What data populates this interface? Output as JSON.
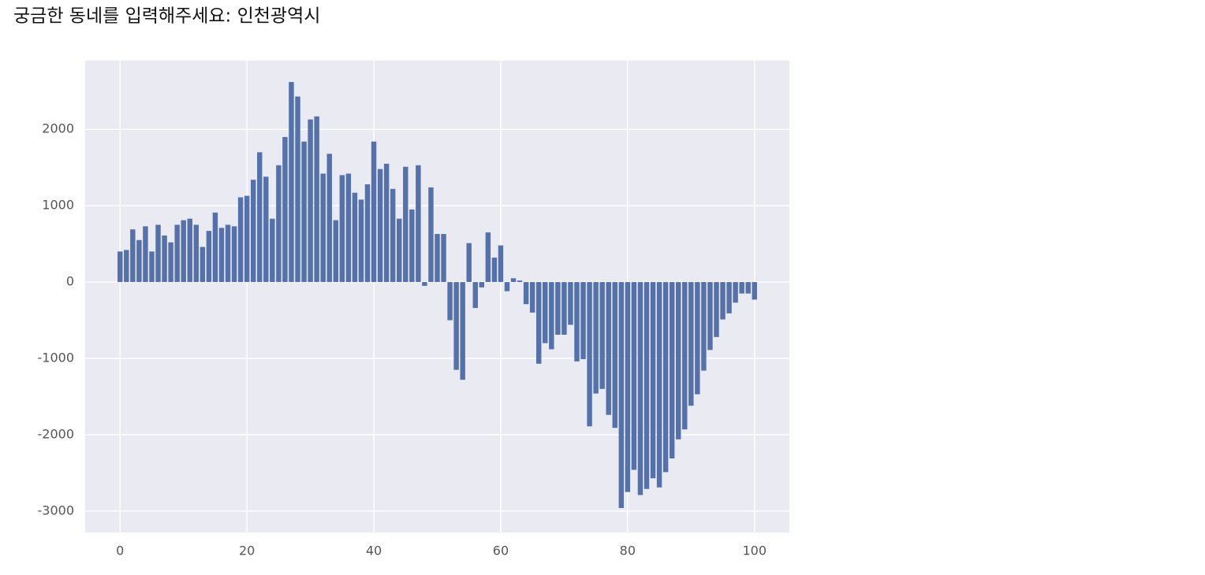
{
  "prompt": "궁금한 동네를 입력해주세요: 인천광역시",
  "chart_data": {
    "type": "bar",
    "x": [
      0,
      1,
      2,
      3,
      4,
      5,
      6,
      7,
      8,
      9,
      10,
      11,
      12,
      13,
      14,
      15,
      16,
      17,
      18,
      19,
      20,
      21,
      22,
      23,
      24,
      25,
      26,
      27,
      28,
      29,
      30,
      31,
      32,
      33,
      34,
      35,
      36,
      37,
      38,
      39,
      40,
      41,
      42,
      43,
      44,
      45,
      46,
      47,
      48,
      49,
      50,
      51,
      52,
      53,
      54,
      55,
      56,
      57,
      58,
      59,
      60,
      61,
      62,
      63,
      64,
      65,
      66,
      67,
      68,
      69,
      70,
      71,
      72,
      73,
      74,
      75,
      76,
      77,
      78,
      79,
      80,
      81,
      82,
      83,
      84,
      85,
      86,
      87,
      88,
      89,
      90,
      91,
      92,
      93,
      94,
      95,
      96,
      97,
      98,
      99,
      100
    ],
    "values": [
      400,
      420,
      690,
      550,
      730,
      400,
      750,
      610,
      520,
      750,
      810,
      830,
      750,
      460,
      670,
      910,
      710,
      750,
      730,
      1110,
      1130,
      1340,
      1700,
      1380,
      830,
      1530,
      1900,
      2620,
      2430,
      1840,
      2130,
      2170,
      1420,
      1680,
      810,
      1400,
      1420,
      1170,
      1080,
      1280,
      1840,
      1480,
      1550,
      1220,
      830,
      1510,
      950,
      1530,
      -50,
      1240,
      630,
      630,
      -500,
      -1150,
      -1280,
      510,
      -340,
      -70,
      650,
      320,
      480,
      -120,
      50,
      20,
      -290,
      -400,
      -1070,
      -800,
      -880,
      -690,
      -690,
      -560,
      -1040,
      -1010,
      -1890,
      -1460,
      -1400,
      -1740,
      -1910,
      -2960,
      -2750,
      -2460,
      -2790,
      -2710,
      -2570,
      -2690,
      -2490,
      -2310,
      -2060,
      -1930,
      -1620,
      -1470,
      -1160,
      -890,
      -720,
      -490,
      -410,
      -270,
      -150,
      -150,
      -230
    ],
    "color": "#5471ab",
    "xlim": [
      -5.5,
      105.5
    ],
    "xticks": [
      0,
      20,
      40,
      60,
      80,
      100
    ],
    "ylim": [
      -3280,
      2900
    ],
    "yticks": [
      -3000,
      -2000,
      -1000,
      0,
      1000,
      2000
    ],
    "grid": true
  }
}
